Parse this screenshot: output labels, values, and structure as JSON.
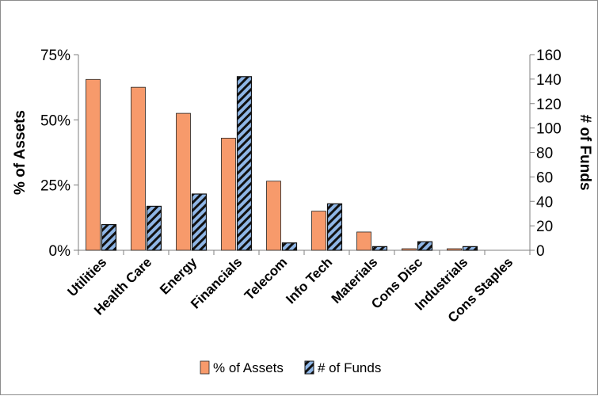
{
  "chart_data": {
    "type": "bar",
    "categories": [
      "Utilities",
      "Health Care",
      "Energy",
      "Financials",
      "Telecom",
      "Info Tech",
      "Materials",
      "Cons Disc",
      "Industrials",
      "Cons Staples"
    ],
    "series": [
      {
        "name": "% of Assets",
        "axis": "left",
        "values": [
          65.5,
          62.5,
          52.5,
          43,
          26.5,
          15,
          7,
          0.6,
          0.6,
          0
        ],
        "color": "#f79a6b",
        "pattern": "solid"
      },
      {
        "name": "# of Funds",
        "axis": "right",
        "values": [
          21,
          36,
          46,
          142,
          6,
          38,
          3,
          7,
          3,
          0
        ],
        "color": "#8fb6e6",
        "pattern": "diagonal-stripes-black"
      }
    ],
    "y_left": {
      "label": "% of Assets",
      "ylim": [
        0,
        75
      ],
      "ticks": [
        0,
        25,
        50,
        75
      ],
      "tick_labels": [
        "0%",
        "25%",
        "50%",
        "75%"
      ]
    },
    "y_right": {
      "label": "# of Funds",
      "ylim": [
        0,
        160
      ],
      "ticks": [
        0,
        20,
        40,
        60,
        80,
        100,
        120,
        140,
        160
      ],
      "tick_labels": [
        "0",
        "20",
        "40",
        "60",
        "80",
        "100",
        "120",
        "140",
        "160"
      ]
    },
    "grid": false,
    "legend_position": "bottom"
  }
}
